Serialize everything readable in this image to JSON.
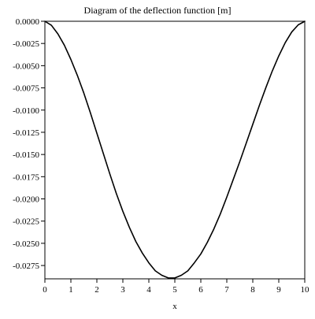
{
  "chart_data": {
    "type": "line",
    "title": "Diagram of the deflection function [m]",
    "xlabel": "x",
    "ylabel": "",
    "xlim": [
      0,
      10
    ],
    "ylim": [
      -0.029,
      0.0
    ],
    "grid": false,
    "x_ticks": [
      "0",
      "1",
      "2",
      "3",
      "4",
      "5",
      "6",
      "7",
      "8",
      "9",
      "10"
    ],
    "y_ticks": [
      "0.0000",
      "-0.0025",
      "-0.0050",
      "-0.0075",
      "-0.0100",
      "-0.0125",
      "-0.0150",
      "-0.0175",
      "-0.0200",
      "-0.0225",
      "-0.0250",
      "-0.0275"
    ],
    "series": [
      {
        "color": "#000000",
        "x": [
          0,
          0.25,
          0.5,
          0.75,
          1.0,
          1.25,
          1.5,
          1.75,
          2.0,
          2.25,
          2.5,
          2.75,
          3.0,
          3.25,
          3.5,
          3.75,
          4.0,
          4.25,
          4.5,
          4.75,
          5.0,
          5.25,
          5.5,
          5.75,
          6.0,
          6.25,
          6.5,
          6.75,
          7.0,
          7.25,
          7.5,
          7.75,
          8.0,
          8.25,
          8.5,
          8.75,
          9.0,
          9.25,
          9.5,
          9.75,
          10.0
        ],
        "y": [
          0.0,
          -0.00045,
          -0.00142,
          -0.0027,
          -0.0043,
          -0.0061,
          -0.0081,
          -0.0103,
          -0.0126,
          -0.0149,
          -0.0172,
          -0.0194,
          -0.0214,
          -0.0232,
          -0.0248,
          -0.0261,
          -0.0272,
          -0.0281,
          -0.0286,
          -0.0289,
          -0.0289,
          -0.0286,
          -0.0281,
          -0.0272,
          -0.0262,
          -0.0249,
          -0.0234,
          -0.0217,
          -0.0198,
          -0.0178,
          -0.0158,
          -0.0137,
          -0.0116,
          -0.0095,
          -0.0075,
          -0.0056,
          -0.0039,
          -0.0024,
          -0.0012,
          -0.0004,
          0.0
        ]
      }
    ]
  }
}
